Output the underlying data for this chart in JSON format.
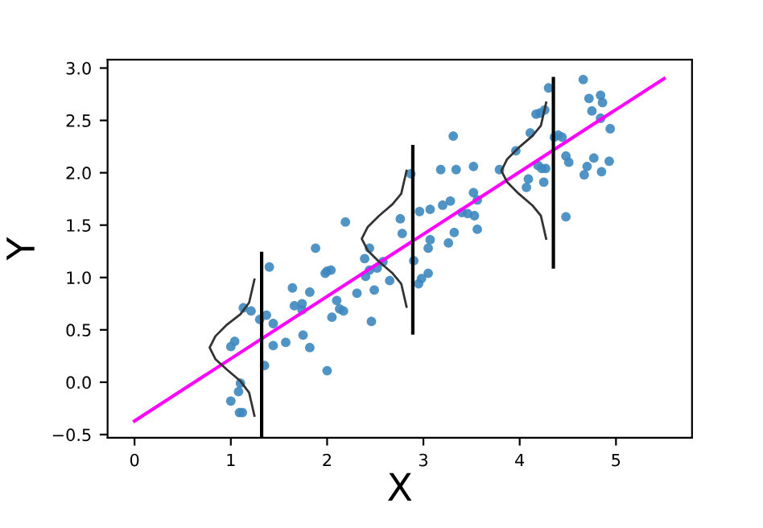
{
  "chart_data": {
    "type": "scatter",
    "xlabel": "X",
    "ylabel": "Y",
    "xlim": [
      -0.28,
      5.79
    ],
    "ylim": [
      -0.53,
      3.08
    ],
    "xticks": [
      0,
      1,
      2,
      3,
      4,
      5
    ],
    "yticks": [
      {
        "value": -0.5,
        "label": "−0.5"
      },
      {
        "value": 0,
        "label": "0.0"
      },
      0.5,
      {
        "value": 1,
        "label": "1.0"
      },
      1.5,
      {
        "value": 2,
        "label": "2.0"
      },
      2.5,
      {
        "value": 3,
        "label": "3.0"
      }
    ],
    "grid": false,
    "series": [
      {
        "marker": "circle",
        "color": "#3d87bf",
        "x": [
          1.88,
          1.4,
          1.64,
          1.13,
          1.21,
          1.37,
          1.3,
          1.44,
          1.66,
          1.74,
          1.74,
          1.82,
          1.04,
          1.0,
          1.75,
          1.44,
          1.57,
          1.82,
          1.35,
          1.1,
          1.08,
          1.0,
          1.09,
          1.12,
          3.31,
          3.18,
          3.34,
          3.52,
          3.79,
          2.87,
          3.52,
          3.56,
          3.28,
          3.2,
          3.07,
          2.96,
          3.4,
          3.46,
          3.53,
          2.76,
          2.19,
          3.56,
          2.78,
          3.32,
          3.07,
          3.26,
          3.05,
          2.44,
          2.39,
          2.9,
          2.58,
          2.52,
          2.44,
          2.0,
          2.04,
          1.98,
          3.05,
          2.98,
          2.95,
          2.4,
          2.65,
          2.49,
          2.31,
          2.1,
          2.13,
          2.17,
          2.05,
          2.46,
          2.0,
          4.66,
          4.3,
          4.72,
          4.84,
          4.86,
          4.75,
          4.26,
          4.21,
          4.17,
          4.84,
          4.94,
          4.11,
          4.36,
          4.4,
          4.44,
          3.96,
          4.48,
          4.51,
          4.77,
          4.93,
          4.7,
          4.19,
          4.23,
          4.27,
          4.85,
          4.67,
          4.09,
          4.07,
          4.25,
          4.48
        ],
        "values": [
          1.28,
          1.1,
          0.9,
          0.71,
          0.68,
          0.64,
          0.6,
          0.56,
          0.73,
          0.75,
          0.69,
          0.86,
          0.39,
          0.34,
          0.45,
          0.35,
          0.38,
          0.33,
          0.16,
          -0.01,
          -0.09,
          -0.18,
          -0.29,
          -0.29,
          2.35,
          2.03,
          2.03,
          2.06,
          2.03,
          1.99,
          1.81,
          1.74,
          1.73,
          1.69,
          1.65,
          1.63,
          1.62,
          1.61,
          1.59,
          1.56,
          1.53,
          1.46,
          1.42,
          1.43,
          1.36,
          1.33,
          1.28,
          1.28,
          1.18,
          1.16,
          1.15,
          1.09,
          1.07,
          1.06,
          1.07,
          1.04,
          1.04,
          0.99,
          0.94,
          1.01,
          0.97,
          0.88,
          0.85,
          0.78,
          0.7,
          0.68,
          0.62,
          0.58,
          0.11,
          2.89,
          2.81,
          2.71,
          2.74,
          2.67,
          2.59,
          2.6,
          2.57,
          2.56,
          2.52,
          2.42,
          2.38,
          2.34,
          2.36,
          2.34,
          2.21,
          2.16,
          2.1,
          2.14,
          2.11,
          2.06,
          2.07,
          2.04,
          2.04,
          2.01,
          1.98,
          1.94,
          1.86,
          1.91,
          1.58
        ]
      },
      {
        "type": "line",
        "marker": "none",
        "color": "#ff00ff",
        "x": [
          0,
          5.5
        ],
        "values": [
          -0.37,
          2.9
        ]
      },
      {
        "type": "line",
        "marker": "none",
        "color": "#000000",
        "x": [
          1.32,
          1.32
        ],
        "values": [
          -0.53,
          1.23
        ]
      },
      {
        "type": "line",
        "marker": "none",
        "color": "#000000",
        "x": [
          2.89,
          2.89
        ],
        "values": [
          0.47,
          2.25
        ]
      },
      {
        "type": "line",
        "marker": "none",
        "color": "#000000",
        "x": [
          4.35,
          4.35
        ],
        "values": [
          1.1,
          2.9
        ]
      },
      {
        "type": "line",
        "marker": "none",
        "color": "#333333",
        "x": [
          1.245,
          1.19,
          1.1,
          0.96,
          0.84,
          0.78,
          0.84,
          0.96,
          1.1,
          1.19,
          1.245
        ],
        "values": [
          -0.32,
          -0.1,
          0.01,
          0.12,
          0.22,
          0.33,
          0.44,
          0.55,
          0.65,
          0.76,
          0.98
        ]
      },
      {
        "type": "line",
        "marker": "none",
        "color": "#333333",
        "x": [
          2.825,
          2.77,
          2.68,
          2.54,
          2.42,
          2.36,
          2.42,
          2.54,
          2.68,
          2.77,
          2.825
        ],
        "values": [
          0.72,
          0.94,
          1.04,
          1.15,
          1.26,
          1.37,
          1.48,
          1.59,
          1.7,
          1.8,
          2.02
        ]
      },
      {
        "type": "line",
        "marker": "none",
        "color": "#333333",
        "x": [
          4.275,
          4.22,
          4.13,
          3.99,
          3.87,
          3.81,
          3.87,
          3.99,
          4.13,
          4.22,
          4.275
        ],
        "values": [
          1.37,
          1.59,
          1.69,
          1.8,
          1.91,
          2.02,
          2.13,
          2.24,
          2.35,
          2.45,
          2.67
        ]
      }
    ]
  }
}
